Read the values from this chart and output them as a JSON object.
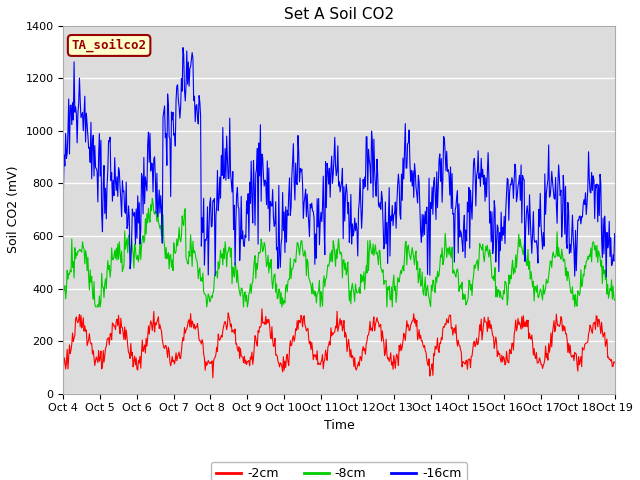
{
  "title": "Set A Soil CO2",
  "xlabel": "Time",
  "ylabel": "Soil CO2 (mV)",
  "ylim": [
    0,
    1400
  ],
  "yticks": [
    0,
    200,
    400,
    600,
    800,
    1000,
    1200,
    1400
  ],
  "xtick_labels": [
    "Oct 4",
    "Oct 5",
    "Oct 6",
    "Oct 7",
    "Oct 8",
    "Oct 9",
    "Oct 10",
    "Oct 11",
    "Oct 12",
    "Oct 13",
    "Oct 14",
    "Oct 15",
    "Oct 16",
    "Oct 17",
    "Oct 18",
    "Oct 19"
  ],
  "legend_entries": [
    "-2cm",
    "-8cm",
    "-16cm"
  ],
  "legend_colors": [
    "#ff0000",
    "#00cc00",
    "#0000ff"
  ],
  "box_label": "TA_soilco2",
  "box_facecolor": "#ffffcc",
  "box_edgecolor": "#990000",
  "plot_bg_top": "#dcdcdc",
  "plot_bg_bottom": "#f0f0f0",
  "fig_bg": "#ffffff",
  "title_fontsize": 11,
  "axis_fontsize": 9,
  "tick_fontsize": 8,
  "legend_fontsize": 9
}
